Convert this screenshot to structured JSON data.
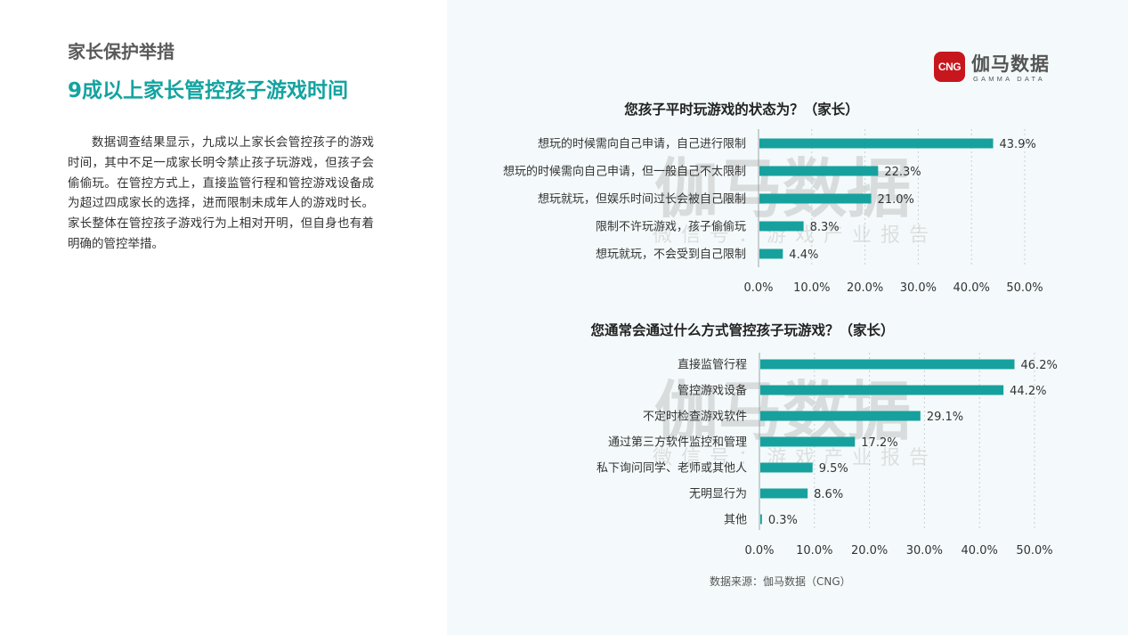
{
  "header": {
    "section_label": "家长保护举措",
    "title": "9成以上家长管控孩子游戏时间"
  },
  "description": "数据调查结果显示，九成以上家长会管控孩子的游戏时间，其中不足一成家长明令禁止孩子玩游戏，但孩子会偷偷玩。在管控方式上，直接监管行程和管控游戏设备成为超过四成家长的选择，进而限制未成年人的游戏时长。家长整体在管控孩子游戏行为上相对开明，但自身也有着明确的管控举措。",
  "brand": {
    "badge": "CNG",
    "name_cn": "伽马数据",
    "name_en": "GAMMA DATA"
  },
  "watermark": {
    "main": "伽马数据",
    "sub": "微信号：游戏产业报告"
  },
  "source": "数据来源：伽马数据（CNG）",
  "colors": {
    "accent": "#14a3a0",
    "bar": "#17a19e",
    "brand_red": "#c8161d"
  },
  "chart_data": [
    {
      "type": "bar",
      "orientation": "horizontal",
      "title": "您孩子平时玩游戏的状态为？（家长）",
      "categories": [
        "想玩的时候需向自己申请，自己进行限制",
        "想玩的时候需向自己申请，但一般自己不太限制",
        "想玩就玩，但娱乐时间过长会被自己限制",
        "限制不许玩游戏，孩子偷偷玩",
        "想玩就玩，不会受到自己限制"
      ],
      "values": [
        43.9,
        22.3,
        21.0,
        8.3,
        4.4
      ],
      "value_labels": [
        "43.9%",
        "22.3%",
        "21.0%",
        "8.3%",
        "4.4%"
      ],
      "xlim": [
        0,
        50
      ],
      "ticks": [
        "0.0%",
        "10.0%",
        "20.0%",
        "30.0%",
        "40.0%",
        "50.0%"
      ],
      "grid": true
    },
    {
      "type": "bar",
      "orientation": "horizontal",
      "title": "您通常会通过什么方式管控孩子玩游戏？（家长）",
      "categories": [
        "直接监管行程",
        "管控游戏设备",
        "不定时检查游戏软件",
        "通过第三方软件监控和管理",
        "私下询问同学、老师或其他人",
        "无明显行为",
        "其他"
      ],
      "values": [
        46.2,
        44.2,
        29.1,
        17.2,
        9.5,
        8.6,
        0.3
      ],
      "value_labels": [
        "46.2%",
        "44.2%",
        "29.1%",
        "17.2%",
        "9.5%",
        "8.6%",
        "0.3%"
      ],
      "xlim": [
        0,
        50
      ],
      "ticks": [
        "0.0%",
        "10.0%",
        "20.0%",
        "30.0%",
        "40.0%",
        "50.0%"
      ],
      "grid": true
    }
  ]
}
